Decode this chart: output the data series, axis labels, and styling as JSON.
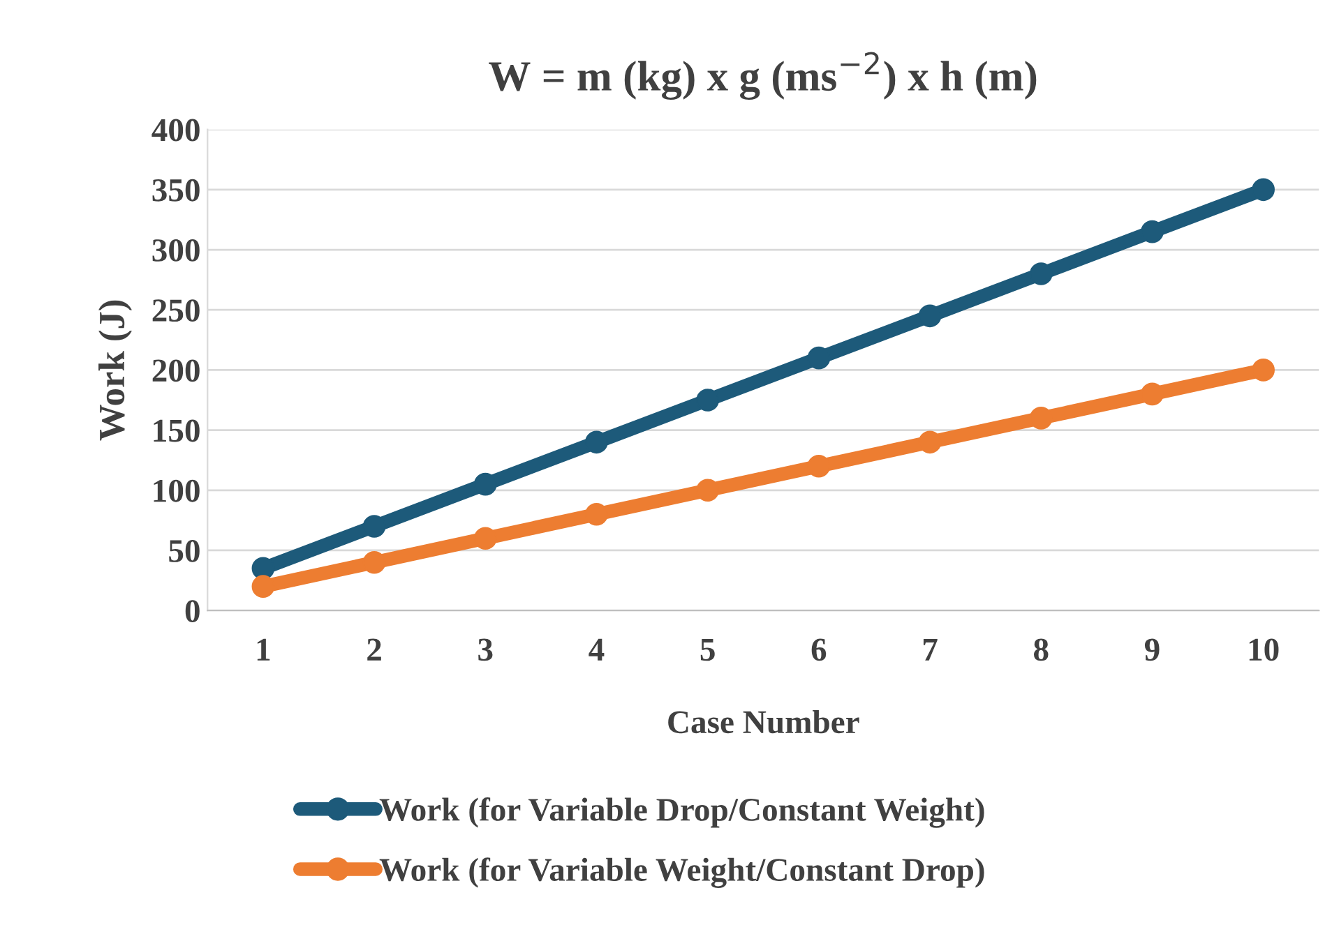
{
  "chart_data": {
    "type": "line",
    "title": "W = m (kg) x g (ms$^{−2}$) x h (m)",
    "xlabel": "Case Number",
    "ylabel": "Work (J)",
    "categories": [
      "1",
      "2",
      "3",
      "4",
      "5",
      "6",
      "7",
      "8",
      "9",
      "10"
    ],
    "series": [
      {
        "name": "Work (for Variable Drop/Constant Weight)",
        "color": "#1d5a7a",
        "values": [
          35,
          70,
          105,
          140,
          175,
          210,
          245,
          280,
          315,
          350
        ]
      },
      {
        "name": "Work (for Variable Weight/Constant Drop)",
        "color": "#ed7d31",
        "values": [
          20,
          40,
          60,
          80,
          100,
          120,
          140,
          160,
          180,
          200
        ]
      }
    ],
    "ylim": [
      0,
      400
    ],
    "yticks": [
      0,
      50,
      100,
      150,
      200,
      250,
      300,
      350,
      400
    ],
    "grid": "y",
    "legend": "bottom",
    "marker": "circle",
    "line_style": "solid"
  }
}
